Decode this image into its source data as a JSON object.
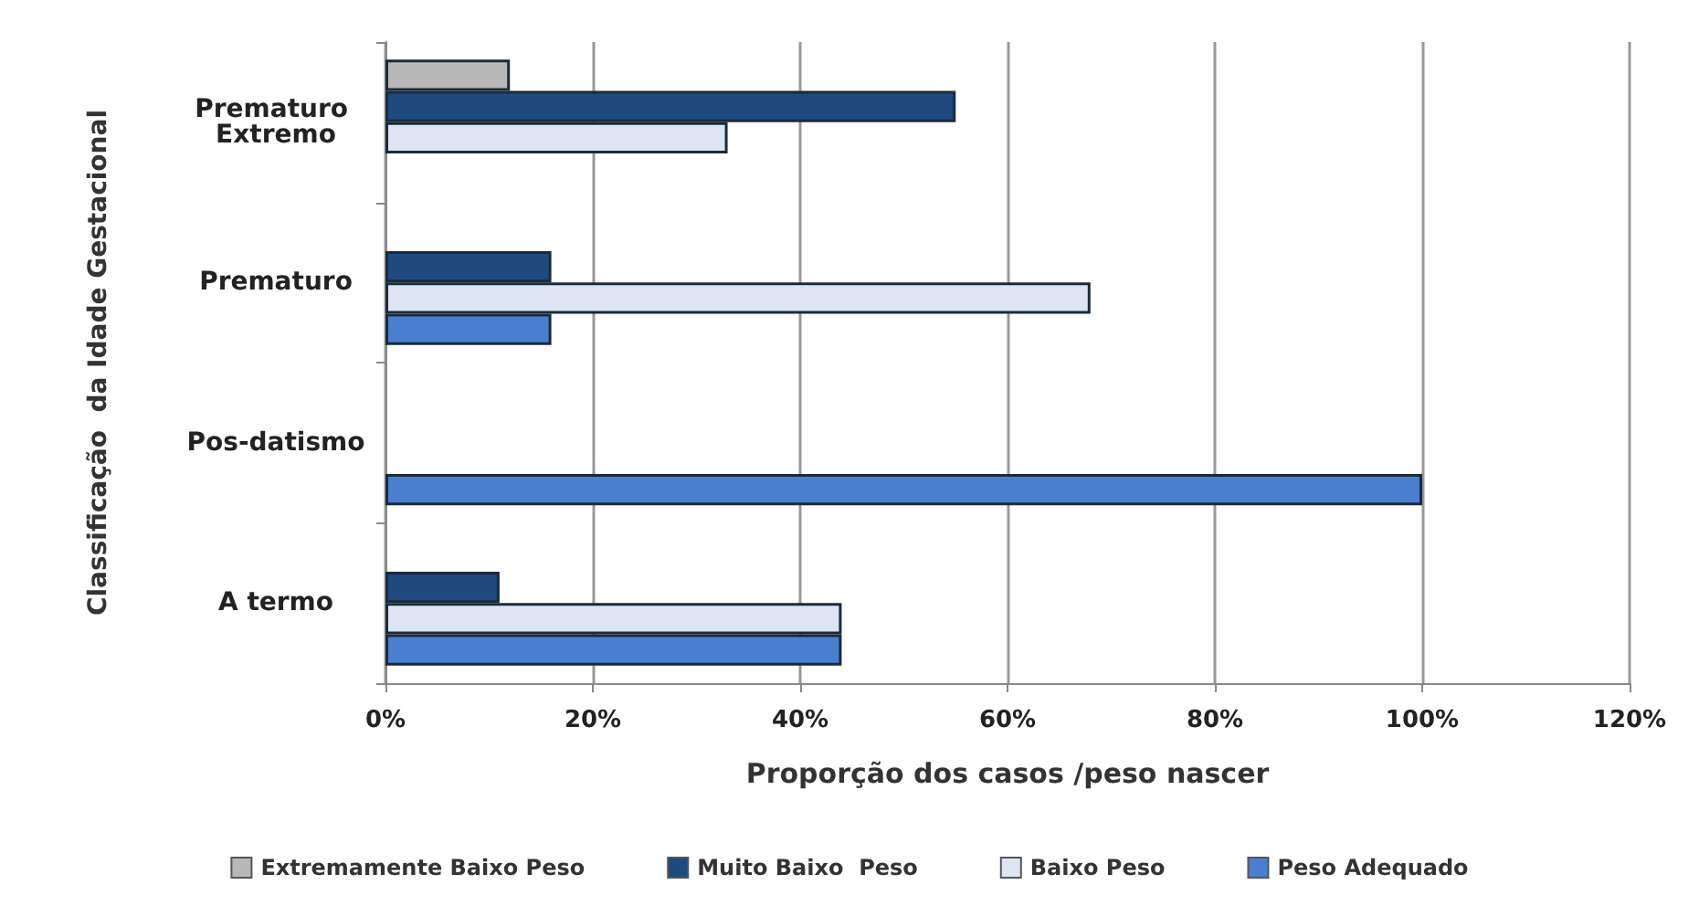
{
  "chart_data": {
    "type": "bar",
    "orientation": "horizontal",
    "xlabel": "Proporção dos casos /peso nascer",
    "ylabel": "Classificação  da Idade Gestacional",
    "categories": [
      "Prematuro Extremo",
      "Prematuro",
      "Pos-datismo",
      "A termo"
    ],
    "series": [
      {
        "name": "Extremamente Baixo Peso",
        "color": "#b8b8b8",
        "values": [
          12,
          null,
          null,
          null
        ]
      },
      {
        "name": "Muito Baixo  Peso",
        "color": "#1f4a80",
        "values": [
          55,
          16,
          null,
          11
        ]
      },
      {
        "name": "Baixo Peso",
        "color": "#dce6f2",
        "values": [
          33,
          68,
          null,
          44
        ]
      },
      {
        "name": "Peso Adequado",
        "color": "#4a7fd0",
        "values": [
          null,
          16,
          100,
          44
        ]
      }
    ],
    "xlim": [
      0,
      120
    ],
    "xticks": [
      {
        "value": 0,
        "label": "0%"
      },
      {
        "value": 20,
        "label": "20%"
      },
      {
        "value": 40,
        "label": "40%"
      },
      {
        "value": 60,
        "label": "60%"
      },
      {
        "value": 80,
        "label": "80%"
      },
      {
        "value": 100,
        "label": "100%"
      },
      {
        "value": 120,
        "label": "120%"
      }
    ],
    "grid": "x",
    "legend": "bottom"
  }
}
